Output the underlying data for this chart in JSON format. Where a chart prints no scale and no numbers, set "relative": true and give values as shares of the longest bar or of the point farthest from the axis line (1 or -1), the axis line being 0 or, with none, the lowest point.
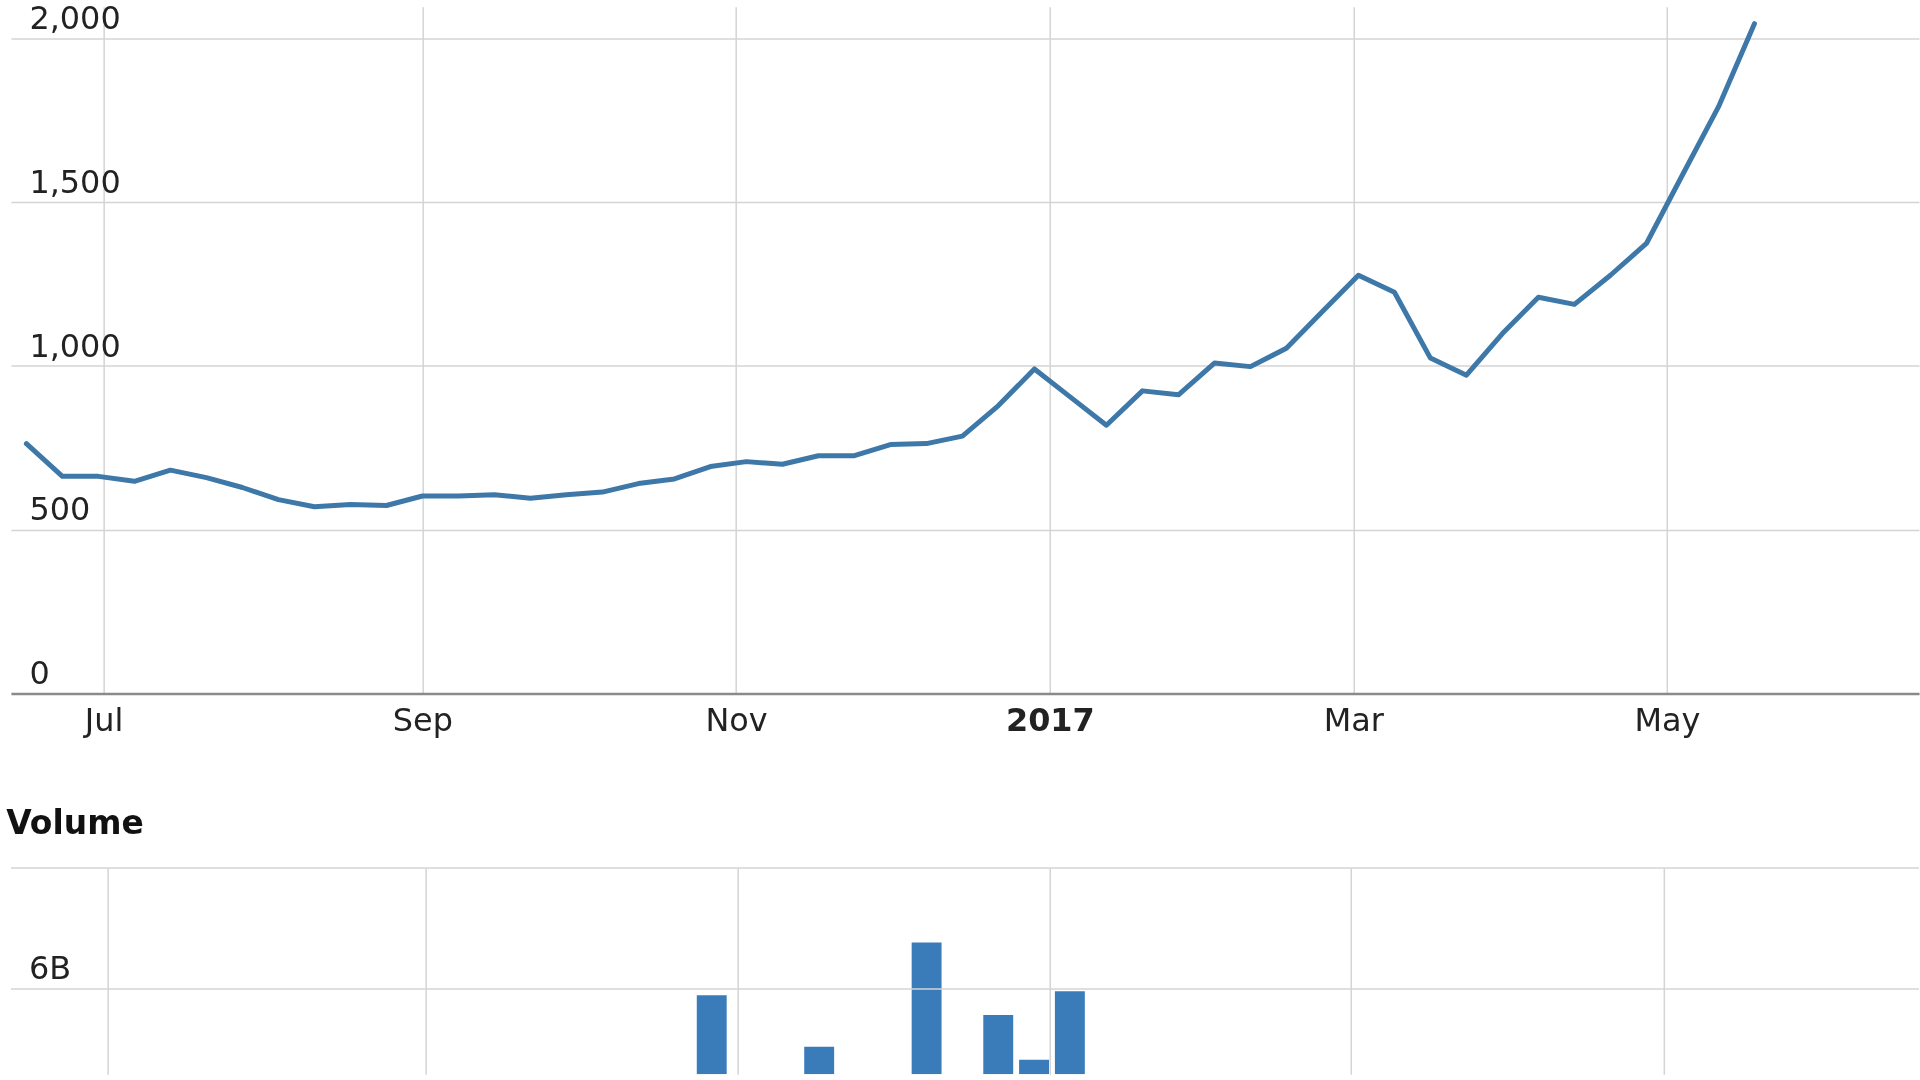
{
  "chart_data": [
    {
      "type": "line",
      "color": "#3d78a8",
      "line_style": "solid",
      "marker": "none",
      "grid": true,
      "x": [
        "2016-06-16",
        "2016-06-23",
        "2016-06-30",
        "2016-07-07",
        "2016-07-14",
        "2016-07-21",
        "2016-07-28",
        "2016-08-04",
        "2016-08-11",
        "2016-08-18",
        "2016-08-25",
        "2016-09-01",
        "2016-09-08",
        "2016-09-15",
        "2016-09-22",
        "2016-09-29",
        "2016-10-06",
        "2016-10-13",
        "2016-10-20",
        "2016-10-27",
        "2016-11-03",
        "2016-11-10",
        "2016-11-17",
        "2016-11-24",
        "2016-12-01",
        "2016-12-08",
        "2016-12-15",
        "2016-12-22",
        "2016-12-29",
        "2017-01-05",
        "2017-01-12",
        "2017-01-19",
        "2017-01-26",
        "2017-02-02",
        "2017-02-09",
        "2017-02-16",
        "2017-02-23",
        "2017-03-02",
        "2017-03-09",
        "2017-03-16",
        "2017-03-23",
        "2017-03-30",
        "2017-04-06",
        "2017-04-13",
        "2017-04-20",
        "2017-04-27",
        "2017-05-04",
        "2017-05-11",
        "2017-05-18"
      ],
      "values": [
        763,
        663,
        663,
        648,
        682,
        659,
        629,
        592,
        570,
        577,
        574,
        603,
        603,
        607,
        596,
        607,
        615,
        641,
        655,
        693,
        708,
        700,
        726,
        726,
        760,
        763,
        786,
        879,
        991,
        905,
        819,
        924,
        912,
        1009,
        998,
        1054,
        1166,
        1277,
        1225,
        1024,
        972,
        1099,
        1210,
        1188,
        1277,
        1374,
        1583,
        1791,
        2045
      ],
      "xlim": [
        "2016-06-13",
        "2017-06-19"
      ],
      "xticks": [
        {
          "value": "2016-07-01",
          "label": "Jul"
        },
        {
          "value": "2016-09-01",
          "label": "Sep"
        },
        {
          "value": "2016-11-01",
          "label": "Nov"
        },
        {
          "value": "2017-01-01",
          "label": "2017"
        },
        {
          "value": "2017-03-01",
          "label": "Mar"
        },
        {
          "value": "2017-05-01",
          "label": "May"
        }
      ],
      "ylim": [
        0,
        2097
      ],
      "yticks": [
        0,
        500,
        {
          "value": 1000,
          "label": "1,000"
        },
        {
          "value": 1500,
          "label": "1,500"
        },
        {
          "value": 2000,
          "label": "2,000"
        }
      ]
    },
    {
      "type": "bar",
      "title": "Volume",
      "color": "#3a7cba",
      "grid": "x",
      "tick_labels": false,
      "relative": true,
      "x": [
        "2016-10-27",
        "2016-11-17",
        "2016-12-08",
        "2016-12-22",
        "2016-12-29",
        "2017-01-05"
      ],
      "values": [
        0.6,
        0.21,
        1,
        0.45,
        0.11,
        0.63
      ],
      "ref_lines": [
        {
          "axis": "y",
          "value": 0.648,
          "label": "6B",
          "color": "#d4d4d4"
        }
      ],
      "xlim": [
        "2016-06-13",
        "2017-06-19"
      ],
      "xticks": [
        {
          "value": "2016-07-01",
          "label": null
        },
        {
          "value": "2016-09-01",
          "label": null
        },
        {
          "value": "2016-11-01",
          "label": null
        },
        {
          "value": "2017-01-01",
          "label": null
        },
        {
          "value": "2017-03-01",
          "label": null
        },
        {
          "value": "2017-05-01",
          "label": null
        }
      ]
    }
  ]
}
